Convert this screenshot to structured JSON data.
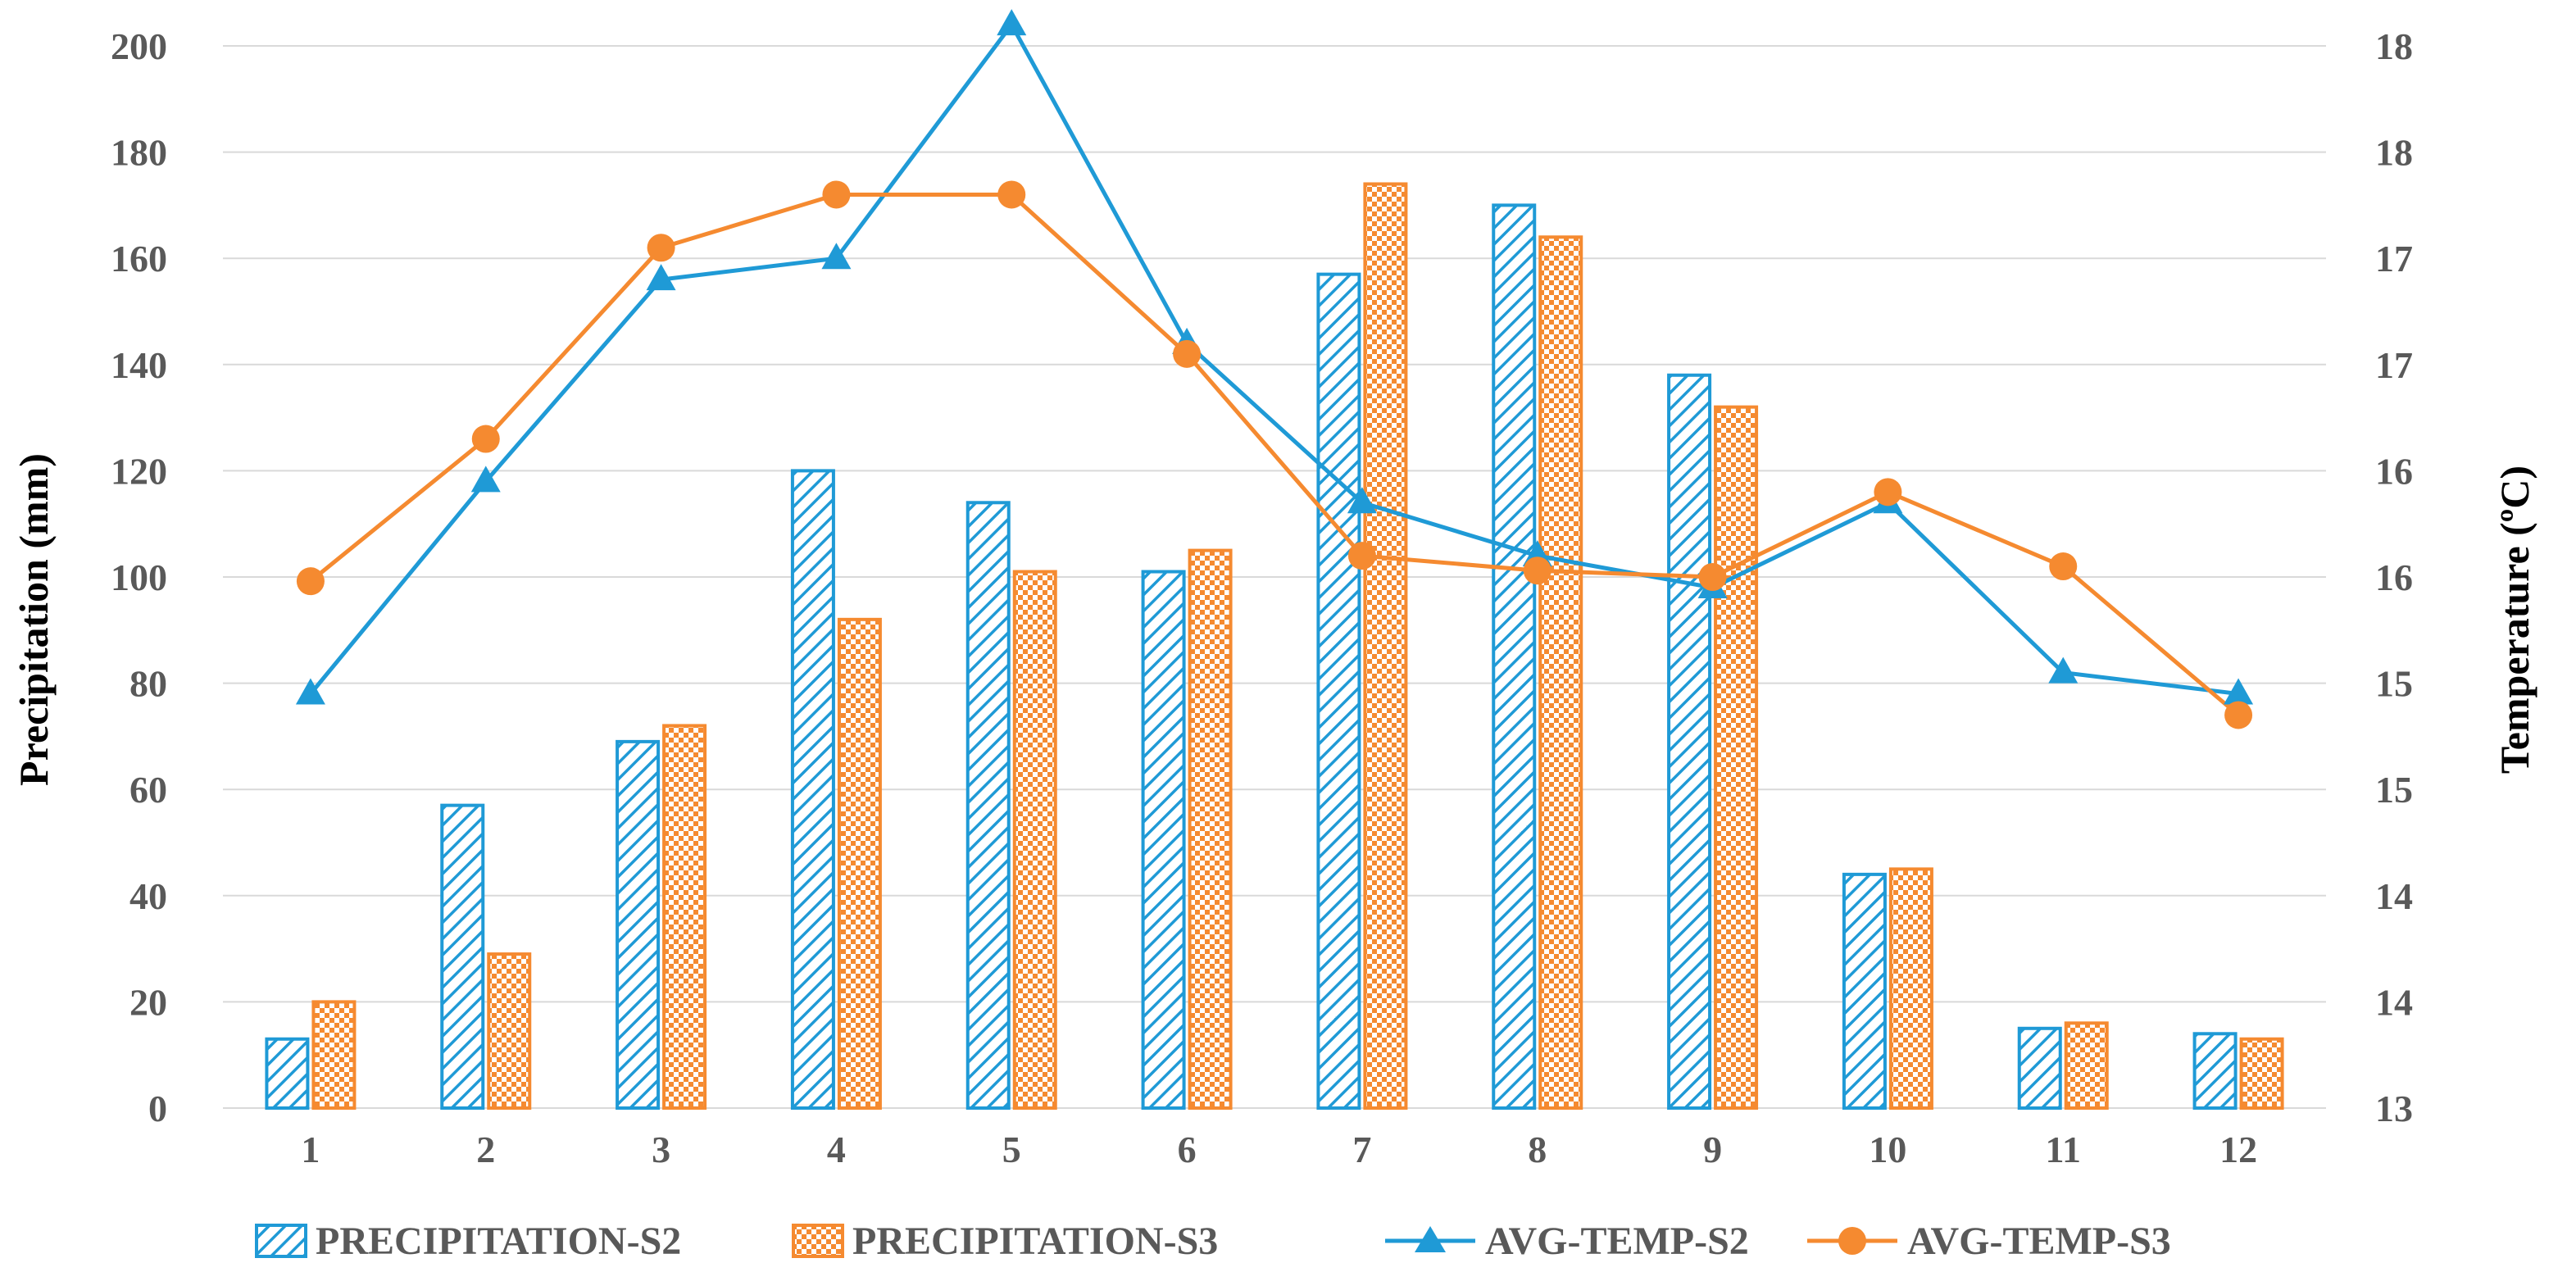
{
  "colors": {
    "s2": "#1f9ad6",
    "s3": "#f58a30",
    "grid": "#d9d9d9",
    "tick_text": "#595959"
  },
  "chart_data": {
    "type": "bar",
    "categories": [
      "1",
      "2",
      "3",
      "4",
      "5",
      "6",
      "7",
      "8",
      "9",
      "10",
      "11",
      "12"
    ],
    "series": [
      {
        "name": "PRECIPITATION-S2",
        "type": "bar",
        "axis": "left",
        "pattern": "diagonal-hatch",
        "values": [
          13,
          57,
          69,
          120,
          114,
          101,
          157,
          170,
          138,
          44,
          15,
          14
        ]
      },
      {
        "name": "PRECIPITATION-S3",
        "type": "bar",
        "axis": "left",
        "pattern": "checkerboard",
        "values": [
          20,
          29,
          72,
          92,
          101,
          105,
          174,
          164,
          132,
          45,
          16,
          13
        ]
      },
      {
        "name": "AVG-TEMP-S2",
        "type": "line",
        "axis": "right",
        "marker": "triangle",
        "values": [
          14.95,
          15.95,
          16.9,
          17.0,
          18.1,
          16.6,
          15.85,
          15.6,
          15.45,
          15.85,
          15.05,
          14.95
        ]
      },
      {
        "name": "AVG-TEMP-S3",
        "type": "line",
        "axis": "right",
        "marker": "circle",
        "values": [
          15.48,
          16.15,
          17.05,
          17.3,
          17.3,
          16.55,
          15.6,
          15.53,
          15.5,
          15.9,
          15.55,
          14.85
        ]
      }
    ],
    "y_left": {
      "label": "Precipitation (mm)",
      "range": [
        0,
        200
      ],
      "ticks": [
        "0",
        "20",
        "40",
        "60",
        "80",
        "100",
        "120",
        "140",
        "160",
        "180",
        "200"
      ]
    },
    "y_right": {
      "label": "Temperature (ºC)",
      "range": [
        13,
        18
      ],
      "tick_values": [
        13,
        13.5,
        14,
        14.5,
        15,
        15.5,
        16,
        16.5,
        17,
        17.5,
        18
      ],
      "tick_labels": [
        "13",
        "14",
        "14",
        "15",
        "15",
        "16",
        "16",
        "17",
        "17",
        "18",
        "18"
      ]
    },
    "xlabel": "",
    "grid": true,
    "legend": "bottom"
  }
}
